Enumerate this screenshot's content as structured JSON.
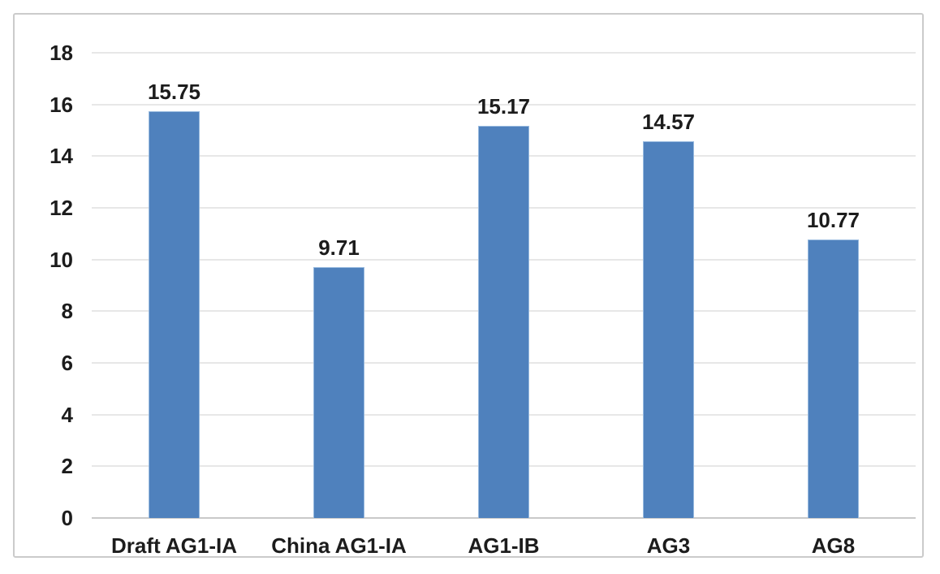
{
  "chart_data": {
    "type": "bar",
    "title": "",
    "xlabel": "",
    "ylabel": "",
    "categories": [
      "Draft AG1-IA",
      "China AG1-IA",
      "AG1-IB",
      "AG3",
      "AG8"
    ],
    "values": [
      15.75,
      9.71,
      15.17,
      14.57,
      10.77
    ],
    "value_labels": [
      "15.75",
      "9.71",
      "15.17",
      "14.57",
      "10.77"
    ],
    "ylim": [
      0,
      18
    ],
    "yticks": [
      0,
      2,
      4,
      6,
      8,
      10,
      12,
      14,
      16,
      18
    ],
    "grid": true,
    "legend": "none",
    "colors": {
      "bar_fill": "#4F81BD",
      "bar_edge": "#98BADF",
      "gridline": "#E7E7E7",
      "axis_line": "#C9C9C9",
      "frame_border": "#CBCBCB",
      "text": "#1C1C1C",
      "background": "#FFFFFF"
    }
  }
}
